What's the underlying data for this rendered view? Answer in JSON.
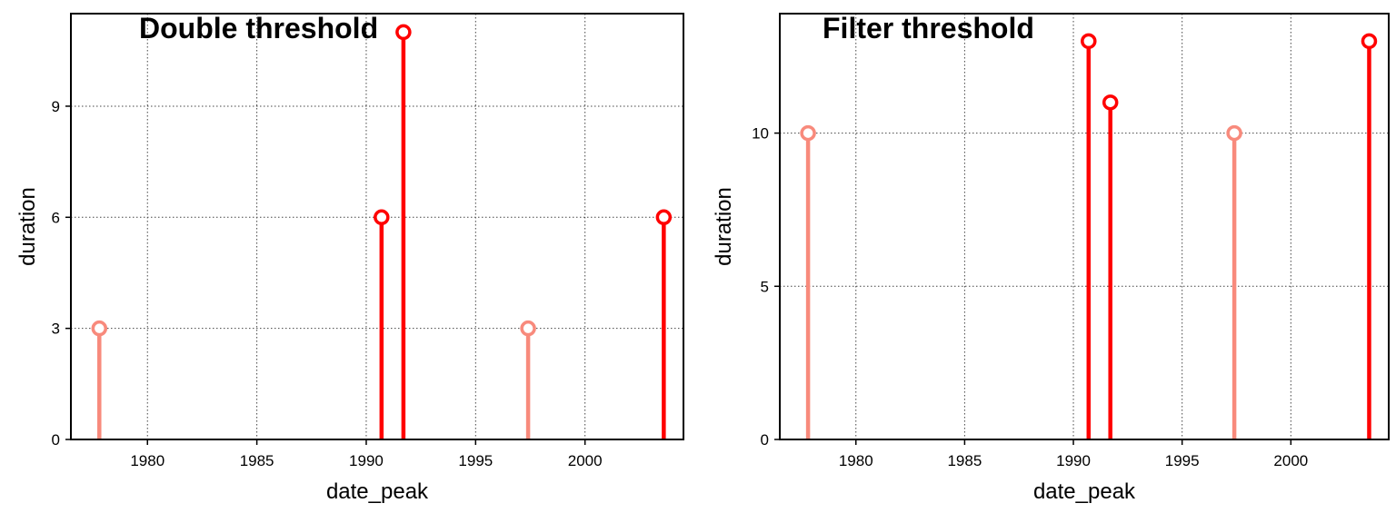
{
  "chart_data": [
    {
      "type": "lollipop",
      "title": "Double threshold",
      "xlabel": "date_peak",
      "ylabel": "duration",
      "xlim": [
        1976.5,
        2004.5
      ],
      "ylim": [
        0,
        11.5
      ],
      "xticks": [
        1980,
        1985,
        1990,
        1995,
        2000
      ],
      "yticks": [
        0,
        3,
        6,
        9
      ],
      "grid": true,
      "points": [
        {
          "x": 1977.8,
          "y": 3,
          "color": "#f88a7c"
        },
        {
          "x": 1990.7,
          "y": 6,
          "color": "#ff0000"
        },
        {
          "x": 1991.7,
          "y": 11,
          "color": "#ff0000"
        },
        {
          "x": 1997.4,
          "y": 3,
          "color": "#f88a7c"
        },
        {
          "x": 2003.6,
          "y": 6,
          "color": "#ff0000"
        }
      ]
    },
    {
      "type": "lollipop",
      "title": "Filter threshold",
      "xlabel": "date_peak",
      "ylabel": "duration",
      "xlim": [
        1976.5,
        2004.5
      ],
      "ylim": [
        0,
        13.9
      ],
      "xticks": [
        1980,
        1985,
        1990,
        1995,
        2000
      ],
      "yticks": [
        0,
        5,
        10
      ],
      "grid": true,
      "points": [
        {
          "x": 1977.8,
          "y": 10,
          "color": "#f88a7c"
        },
        {
          "x": 1990.7,
          "y": 13,
          "color": "#ff0000"
        },
        {
          "x": 1991.7,
          "y": 11,
          "color": "#ff0000"
        },
        {
          "x": 1997.4,
          "y": 10,
          "color": "#f88a7c"
        },
        {
          "x": 2003.6,
          "y": 13,
          "color": "#ff0000"
        }
      ]
    }
  ]
}
